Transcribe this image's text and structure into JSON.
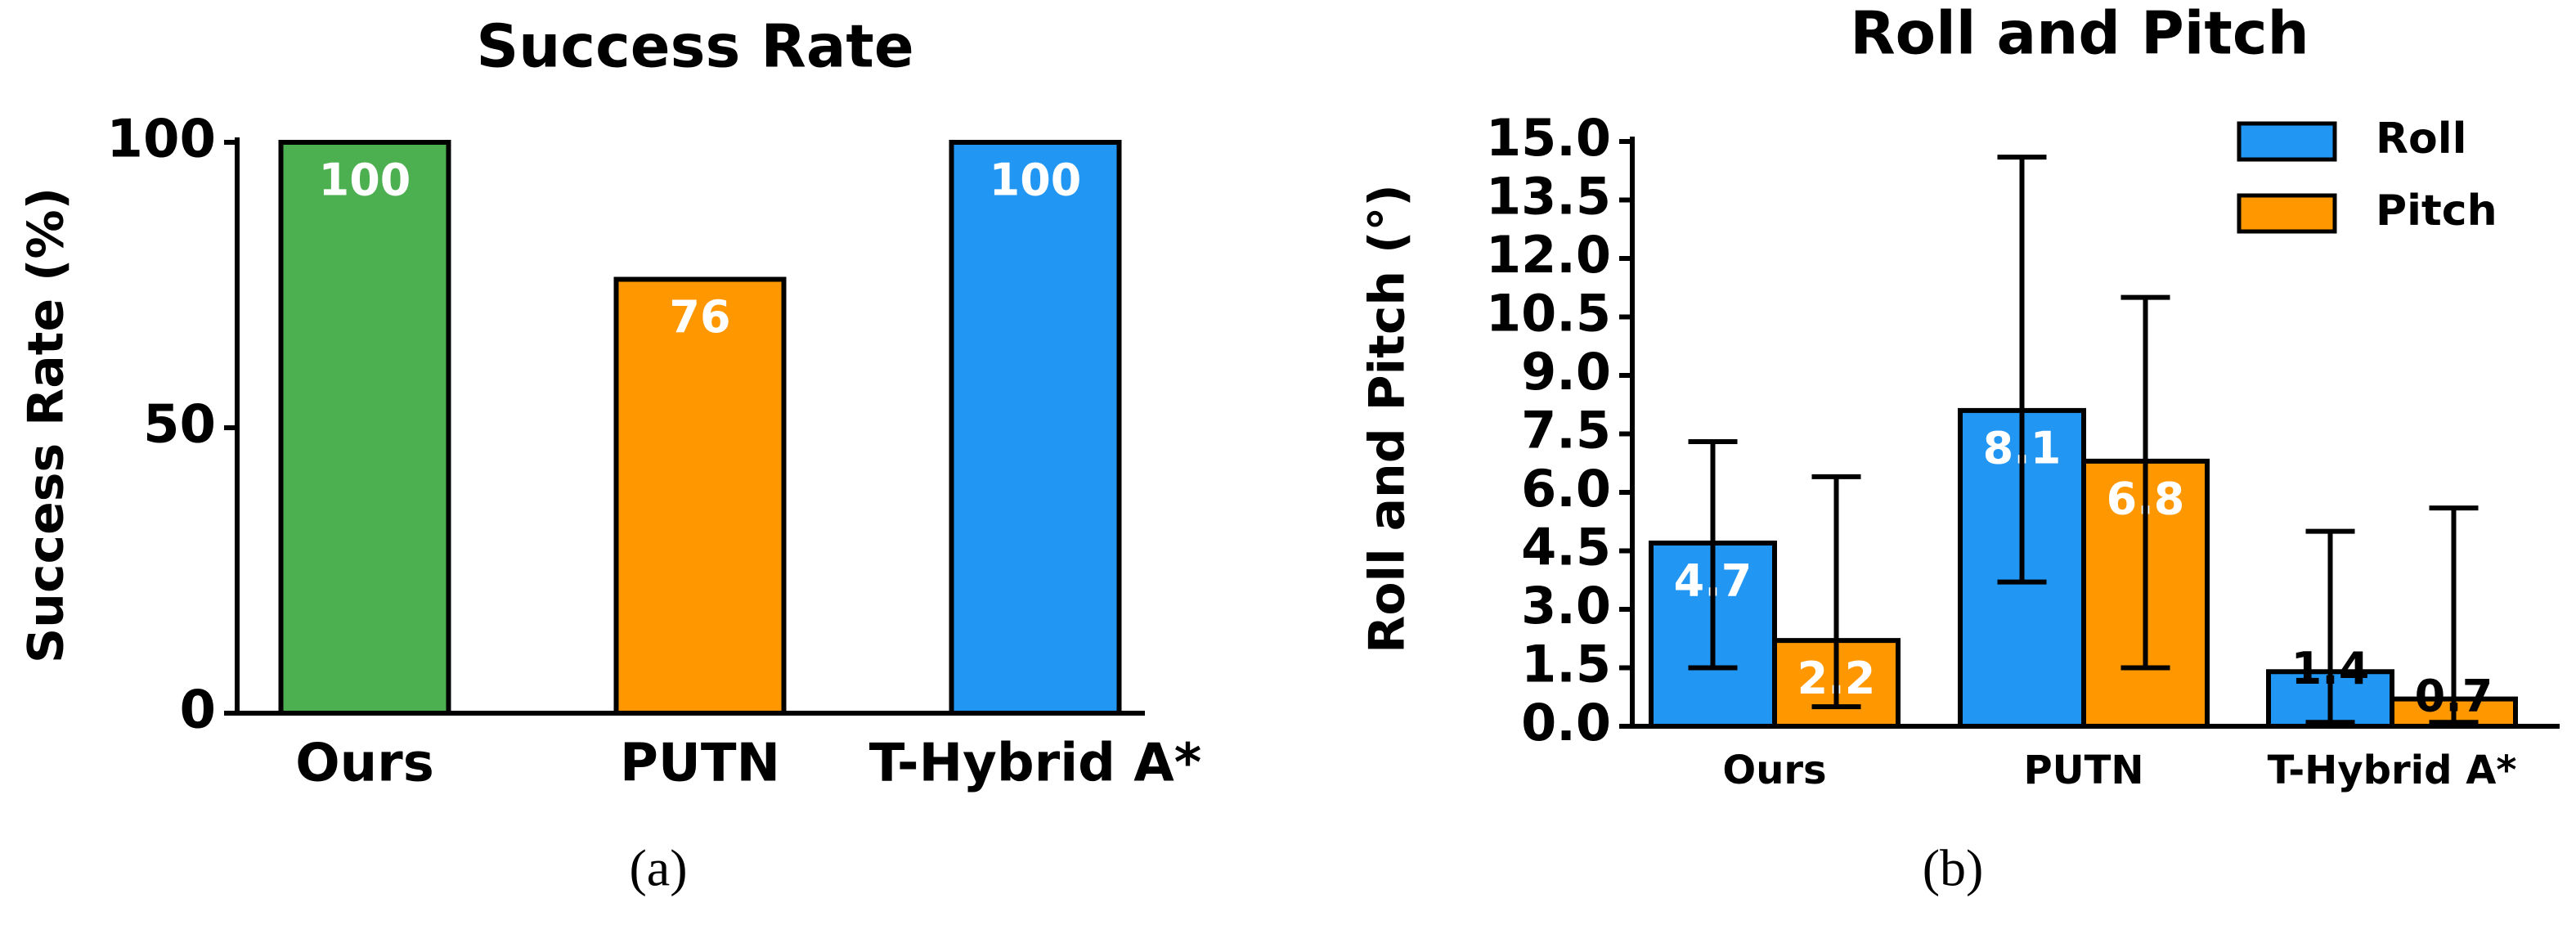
{
  "chart_data": [
    {
      "type": "bar",
      "title": "Success Rate",
      "ylabel": "Success Rate (%)",
      "caption": "(a)",
      "categories": [
        "Ours",
        "PUTN",
        "T-Hybrid A*"
      ],
      "values": [
        100,
        76,
        100
      ],
      "colors": [
        "#4caf50",
        "#ff9800",
        "#2196f3"
      ],
      "ylim": [
        0,
        100
      ],
      "yticks": [
        0,
        50,
        100
      ]
    },
    {
      "type": "bar",
      "title": "Roll and Pitch",
      "ylabel": "Roll and Pitch (°)",
      "caption": "(b)",
      "categories": [
        "Ours",
        "PUTN",
        "T-Hybrid A*"
      ],
      "series": [
        {
          "name": "Roll",
          "color": "#2196f3",
          "values": [
            4.7,
            8.1,
            1.4
          ],
          "errors_minus": [
            3.2,
            4.4,
            1.3
          ],
          "errors_plus": [
            2.6,
            6.5,
            3.6
          ]
        },
        {
          "name": "Pitch",
          "color": "#ff9800",
          "values": [
            2.2,
            6.8,
            0.7
          ],
          "errors_minus": [
            1.7,
            5.3,
            0.6
          ],
          "errors_plus": [
            4.2,
            4.2,
            4.9
          ]
        }
      ],
      "ylim": [
        0,
        15
      ],
      "yticks": [
        {
          "value": 0,
          "label": "0.0"
        },
        1.5,
        {
          "value": 3,
          "label": "3.0"
        },
        4.5,
        {
          "value": 6,
          "label": "6.0"
        },
        7.5,
        {
          "value": 9,
          "label": "9.0"
        },
        10.5,
        {
          "value": 12,
          "label": "12.0"
        },
        13.5,
        {
          "value": 15,
          "label": "15.0"
        }
      ],
      "legend": "upper right"
    }
  ]
}
